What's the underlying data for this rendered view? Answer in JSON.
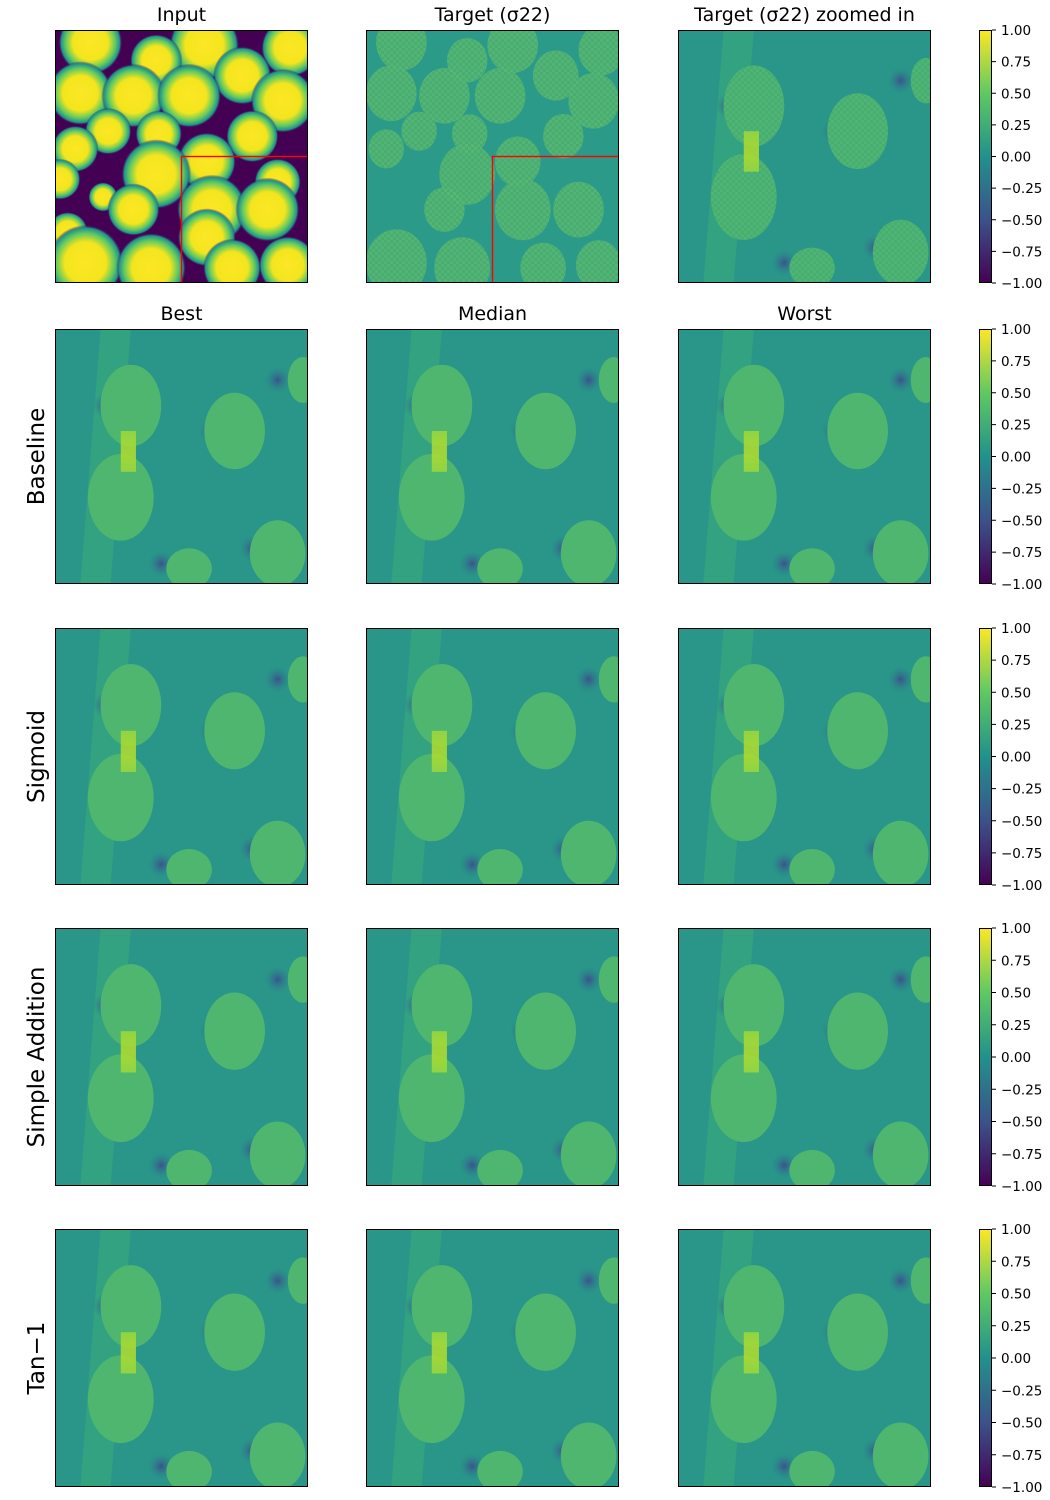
{
  "figure": {
    "column_titles_top": [
      "Input",
      "Target (σ22)",
      "Target (σ22) zoomed in"
    ],
    "column_titles_pred": [
      "Best",
      "Median",
      "Worst"
    ],
    "row_labels": [
      "Baseline",
      "Sigmoid",
      "Simple Addition",
      "Tan−1"
    ]
  },
  "colors": {
    "colormap": "viridis",
    "viridis_stops": [
      "#440154",
      "#3b528b",
      "#21918c",
      "#5ec962",
      "#fde725"
    ],
    "highlight_box": "#ff0000"
  },
  "chart_data": [
    {
      "type": "heatmap",
      "row": "Input / Target",
      "panels": [
        "Input",
        "Target (σ22)",
        "Target (σ22) zoomed in"
      ],
      "colorbar": {
        "range": [
          -1.0,
          1.0
        ],
        "ticks": [
          "1.00",
          "0.75",
          "0.50",
          "0.25",
          "0.00",
          "−0.25",
          "−0.50",
          "−0.75",
          "−1.00"
        ]
      }
    },
    {
      "type": "heatmap",
      "row": "Baseline",
      "panels": [
        "Best",
        "Median",
        "Worst"
      ],
      "colorbar": {
        "range": [
          -1.0,
          1.0
        ],
        "ticks": [
          "1.00",
          "0.75",
          "0.50",
          "0.25",
          "0.00",
          "−0.25",
          "−0.50",
          "−0.75",
          "−1.00"
        ]
      }
    },
    {
      "type": "heatmap",
      "row": "Sigmoid",
      "panels": [
        "Best",
        "Median",
        "Worst"
      ],
      "colorbar": {
        "range": [
          -1.0,
          1.0
        ],
        "ticks": [
          "1.00",
          "0.75",
          "0.50",
          "0.25",
          "0.00",
          "−0.25",
          "−0.50",
          "−0.75",
          "−1.00"
        ]
      }
    },
    {
      "type": "heatmap",
      "row": "Simple Addition",
      "panels": [
        "Best",
        "Median",
        "Worst"
      ],
      "colorbar": {
        "range": [
          -1.0,
          1.0
        ],
        "ticks": [
          "1.00",
          "0.75",
          "0.50",
          "0.25",
          "0.00",
          "−0.25",
          "−0.50",
          "−0.75",
          "−1.00"
        ]
      }
    },
    {
      "type": "heatmap",
      "row": "Tan−1",
      "panels": [
        "Best",
        "Median",
        "Worst"
      ],
      "colorbar": {
        "range": [
          -1.0,
          1.0
        ],
        "ticks": [
          "1.00",
          "0.75",
          "0.50",
          "0.25",
          "0.00",
          "−0.25",
          "−0.50",
          "−0.75",
          "−1.00"
        ]
      }
    }
  ]
}
